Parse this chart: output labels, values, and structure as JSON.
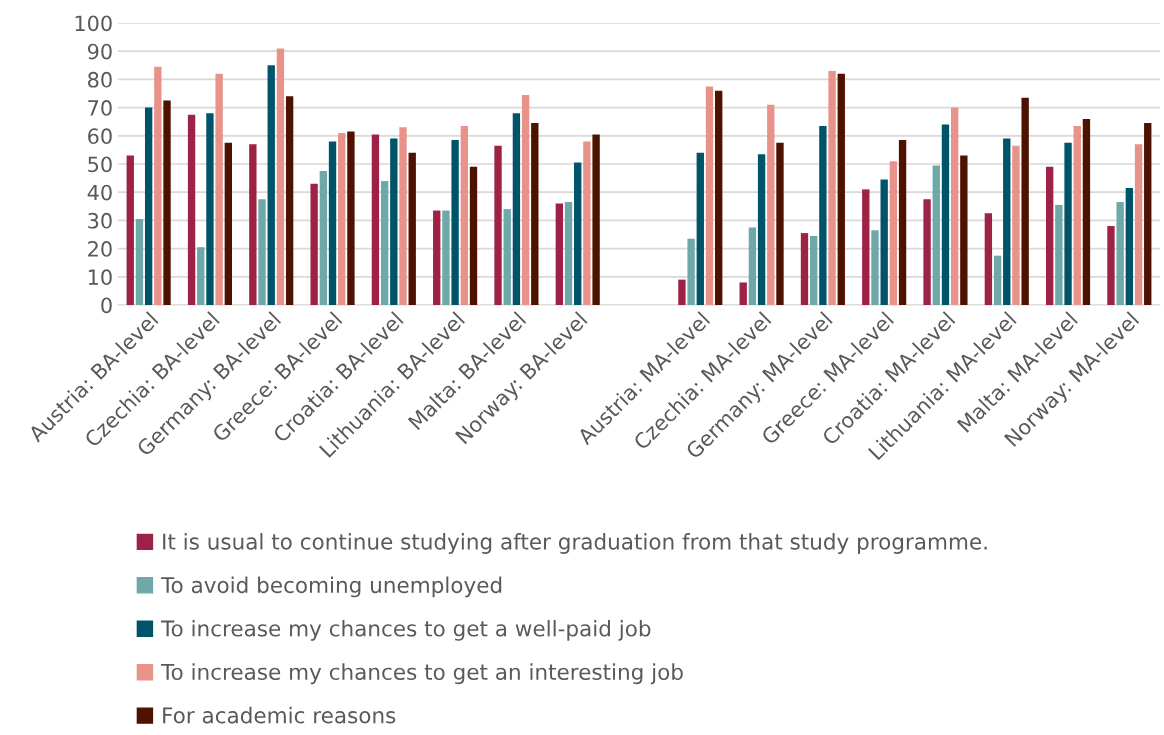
{
  "chart_data": {
    "type": "bar",
    "categories": [
      "Austria: BA-level",
      "Czechia: BA-level",
      "Germany: BA-level",
      "Greece: BA-level",
      "Croatia: BA-level",
      "Lithuania: BA-level",
      "Malta: BA-level",
      "Norway: BA-level",
      null,
      "Austria: MA-level",
      "Czechia: MA-level",
      "Germany: MA-level",
      "Greece: MA-level",
      "Croatia: MA-level",
      "Lithuania: MA-level",
      "Malta: MA-level",
      "Norway: MA-level"
    ],
    "series": [
      {
        "name": "It is usual to continue studying after graduation from that study programme.",
        "color": "#9e2246",
        "values": [
          53,
          67.5,
          57,
          43,
          60.5,
          33.5,
          56.5,
          36,
          null,
          9,
          8,
          25.5,
          41,
          37.5,
          32.5,
          49,
          28
        ]
      },
      {
        "name": "To avoid becoming unemployed",
        "color": "#6fa8a8",
        "values": [
          30.5,
          20.5,
          37.5,
          47.5,
          44,
          33.5,
          34,
          36.5,
          null,
          23.5,
          27.5,
          24.5,
          26.5,
          49.5,
          17.5,
          35.5,
          36.5
        ]
      },
      {
        "name": "To increase my chances to get a well-paid job",
        "color": "#00546a",
        "values": [
          70,
          68,
          85,
          58,
          59,
          58.5,
          68,
          50.5,
          null,
          54,
          53.5,
          63.5,
          44.5,
          64,
          59,
          57.5,
          41.5
        ]
      },
      {
        "name": "To increase my chances to get an interesting job",
        "color": "#e8928a",
        "values": [
          84.5,
          82,
          91,
          61,
          63,
          63.5,
          74.5,
          58,
          null,
          77.5,
          71,
          83,
          51,
          70,
          56.5,
          63.5,
          57
        ]
      },
      {
        "name": "For academic reasons",
        "color": "#4d1200",
        "values": [
          72.5,
          57.5,
          74,
          61.5,
          54,
          49,
          64.5,
          60.5,
          null,
          76,
          57.5,
          82,
          58.5,
          53,
          73.5,
          66,
          64.5
        ]
      }
    ],
    "ylim": [
      0,
      100
    ],
    "yticks": [
      0,
      10,
      20,
      30,
      40,
      50,
      60,
      70,
      80,
      90,
      100
    ],
    "grid": "y",
    "legend": "bottom"
  }
}
